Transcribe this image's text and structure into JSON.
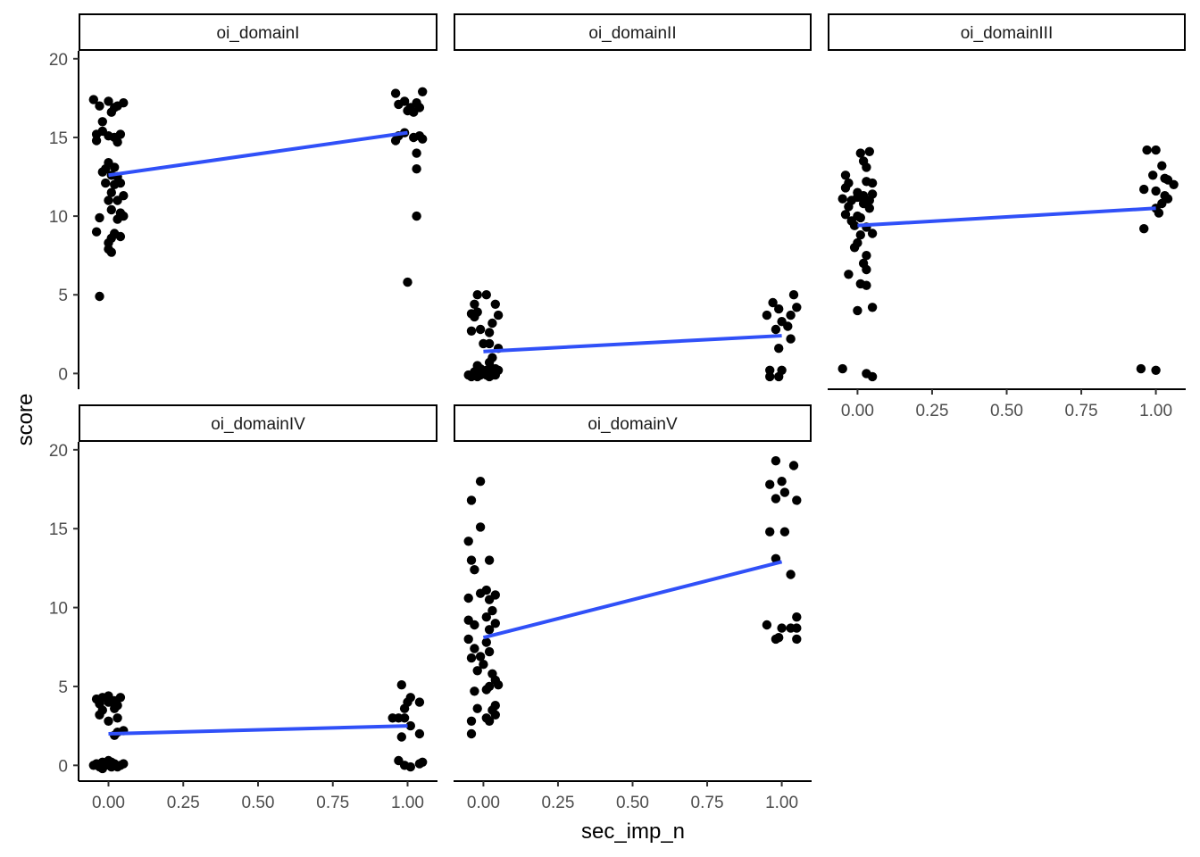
{
  "chart_data": {
    "type": "scatter",
    "xlabel": "sec_imp_n",
    "ylabel": "score",
    "xlim": [
      -0.1,
      1.1
    ],
    "ylim": [
      -1,
      20.5
    ],
    "x_ticks": [
      0,
      0.25,
      0.5,
      0.75,
      1
    ],
    "x_tick_labels": [
      "0.00",
      "0.25",
      "0.50",
      "0.75",
      "1.00"
    ],
    "y_ticks": [
      0,
      5,
      10,
      15,
      20
    ],
    "y_tick_labels": [
      "0",
      "5",
      "10",
      "15",
      "20"
    ],
    "grid": false,
    "point_color": "#000000",
    "line_color": "#3050f8",
    "strip_fill": "#ffffff",
    "panels": [
      {
        "name": "oi_domainI",
        "fit": {
          "x": [
            0,
            1
          ],
          "y": [
            12.6,
            15.3
          ]
        },
        "points": [
          [
            -0.05,
            17.4
          ],
          [
            -0.04,
            15.2
          ],
          [
            -0.03,
            17.0
          ],
          [
            -0.02,
            15.4
          ],
          [
            -0.04,
            14.8
          ],
          [
            0.0,
            17.3
          ],
          [
            0.02,
            16.9
          ],
          [
            0.03,
            17.0
          ],
          [
            0.01,
            16.6
          ],
          [
            -0.02,
            16.0
          ],
          [
            0.04,
            15.2
          ],
          [
            0.02,
            15.0
          ],
          [
            0.0,
            15.1
          ],
          [
            0.05,
            17.2
          ],
          [
            0.03,
            14.7
          ],
          [
            -0.01,
            13.0
          ],
          [
            0.0,
            13.4
          ],
          [
            0.02,
            13.1
          ],
          [
            -0.02,
            12.8
          ],
          [
            0.01,
            12.6
          ],
          [
            0.03,
            12.5
          ],
          [
            -0.01,
            12.1
          ],
          [
            0.02,
            12.0
          ],
          [
            0.04,
            12.1
          ],
          [
            0.01,
            11.5
          ],
          [
            0.05,
            11.3
          ],
          [
            0.03,
            11.0
          ],
          [
            0.0,
            11.0
          ],
          [
            0.01,
            10.4
          ],
          [
            0.04,
            10.2
          ],
          [
            0.05,
            10.0
          ],
          [
            -0.03,
            9.9
          ],
          [
            0.03,
            9.8
          ],
          [
            -0.04,
            9.0
          ],
          [
            0.02,
            8.9
          ],
          [
            0.04,
            8.7
          ],
          [
            0.01,
            8.6
          ],
          [
            0.0,
            8.3
          ],
          [
            0.0,
            7.9
          ],
          [
            0.01,
            7.7
          ],
          [
            -0.03,
            4.9
          ],
          [
            0.96,
            17.8
          ],
          [
            0.99,
            17.3
          ],
          [
            1.05,
            17.9
          ],
          [
            0.97,
            17.1
          ],
          [
            1.01,
            16.9
          ],
          [
            1.03,
            17.2
          ],
          [
            1.04,
            16.9
          ],
          [
            1.0,
            16.7
          ],
          [
            1.02,
            16.6
          ],
          [
            0.97,
            15.1
          ],
          [
            0.99,
            15.3
          ],
          [
            1.04,
            15.1
          ],
          [
            0.96,
            14.8
          ],
          [
            1.05,
            14.9
          ],
          [
            1.02,
            15.0
          ],
          [
            1.03,
            14.0
          ],
          [
            1.03,
            13.0
          ],
          [
            1.03,
            10.0
          ],
          [
            1.0,
            5.8
          ]
        ]
      },
      {
        "name": "oi_domainII",
        "fit": {
          "x": [
            0,
            1
          ],
          "y": [
            1.4,
            2.4
          ]
        },
        "points": [
          [
            -0.02,
            5.0
          ],
          [
            0.01,
            5.0
          ],
          [
            -0.03,
            4.4
          ],
          [
            0.04,
            4.4
          ],
          [
            -0.04,
            3.8
          ],
          [
            -0.02,
            3.9
          ],
          [
            -0.03,
            3.6
          ],
          [
            0.05,
            3.7
          ],
          [
            0.03,
            3.2
          ],
          [
            -0.04,
            2.7
          ],
          [
            -0.01,
            2.8
          ],
          [
            0.02,
            2.6
          ],
          [
            0.0,
            1.9
          ],
          [
            0.02,
            1.9
          ],
          [
            0.05,
            1.6
          ],
          [
            0.03,
            1.0
          ],
          [
            0.02,
            0.7
          ],
          [
            -0.02,
            0.5
          ],
          [
            0.04,
            0.3
          ],
          [
            0.05,
            0.2
          ],
          [
            -0.05,
            -0.1
          ],
          [
            -0.04,
            -0.2
          ],
          [
            -0.03,
            -0.1
          ],
          [
            -0.02,
            -0.2
          ],
          [
            -0.01,
            -0.1
          ],
          [
            0.0,
            0.0
          ],
          [
            0.01,
            -0.1
          ],
          [
            0.02,
            -0.2
          ],
          [
            0.03,
            -0.1
          ],
          [
            0.04,
            -0.1
          ],
          [
            -0.03,
            0.1
          ],
          [
            0.01,
            0.2
          ],
          [
            0.03,
            0.3
          ],
          [
            -0.01,
            0.3
          ],
          [
            1.04,
            5.0
          ],
          [
            0.97,
            4.5
          ],
          [
            1.05,
            4.2
          ],
          [
            0.99,
            4.1
          ],
          [
            0.95,
            3.7
          ],
          [
            1.03,
            3.7
          ],
          [
            1.0,
            3.3
          ],
          [
            1.02,
            3.0
          ],
          [
            0.98,
            2.8
          ],
          [
            1.03,
            2.2
          ],
          [
            0.99,
            1.6
          ],
          [
            0.96,
            0.2
          ],
          [
            1.0,
            0.2
          ],
          [
            0.96,
            -0.2
          ],
          [
            0.99,
            -0.2
          ]
        ]
      },
      {
        "name": "oi_domainIII",
        "fit": {
          "x": [
            0,
            1
          ],
          "y": [
            9.4,
            10.5
          ]
        },
        "points": [
          [
            0.01,
            14.0
          ],
          [
            0.04,
            14.1
          ],
          [
            0.02,
            13.5
          ],
          [
            0.03,
            13.1
          ],
          [
            -0.04,
            12.6
          ],
          [
            0.03,
            12.2
          ],
          [
            -0.03,
            12.1
          ],
          [
            0.05,
            12.1
          ],
          [
            -0.04,
            11.8
          ],
          [
            0.0,
            11.5
          ],
          [
            -0.05,
            11.1
          ],
          [
            -0.02,
            11.0
          ],
          [
            0.0,
            11.2
          ],
          [
            0.02,
            11.3
          ],
          [
            0.04,
            11.0
          ],
          [
            0.05,
            11.4
          ],
          [
            -0.03,
            10.6
          ],
          [
            0.02,
            10.8
          ],
          [
            0.04,
            10.5
          ],
          [
            -0.04,
            10.1
          ],
          [
            0.0,
            10.0
          ],
          [
            -0.02,
            9.7
          ],
          [
            0.01,
            9.9
          ],
          [
            -0.01,
            9.4
          ],
          [
            0.03,
            9.3
          ],
          [
            0.05,
            8.9
          ],
          [
            0.01,
            8.8
          ],
          [
            0.0,
            8.3
          ],
          [
            -0.01,
            8.0
          ],
          [
            0.03,
            7.5
          ],
          [
            0.02,
            7.0
          ],
          [
            -0.03,
            6.3
          ],
          [
            0.03,
            6.6
          ],
          [
            0.01,
            5.7
          ],
          [
            0.03,
            5.6
          ],
          [
            0.0,
            4.0
          ],
          [
            0.05,
            4.2
          ],
          [
            -0.05,
            0.3
          ],
          [
            0.03,
            0.0
          ],
          [
            0.05,
            -0.2
          ],
          [
            0.97,
            14.2
          ],
          [
            1.0,
            14.2
          ],
          [
            1.02,
            13.2
          ],
          [
            0.99,
            12.6
          ],
          [
            1.03,
            12.4
          ],
          [
            1.04,
            12.3
          ],
          [
            1.06,
            12.0
          ],
          [
            0.96,
            11.7
          ],
          [
            1.0,
            11.6
          ],
          [
            1.03,
            11.3
          ],
          [
            1.04,
            11.1
          ],
          [
            1.02,
            10.8
          ],
          [
            1.0,
            10.5
          ],
          [
            1.01,
            10.2
          ],
          [
            0.96,
            9.2
          ],
          [
            0.95,
            0.3
          ],
          [
            1.0,
            0.2
          ]
        ]
      },
      {
        "name": "oi_domainIV",
        "fit": {
          "x": [
            0,
            1
          ],
          "y": [
            2.0,
            2.5
          ]
        },
        "points": [
          [
            -0.04,
            4.2
          ],
          [
            -0.02,
            4.3
          ],
          [
            0.0,
            4.4
          ],
          [
            0.02,
            4.1
          ],
          [
            0.04,
            4.3
          ],
          [
            -0.03,
            3.9
          ],
          [
            0.0,
            4.0
          ],
          [
            0.03,
            3.8
          ],
          [
            -0.02,
            3.5
          ],
          [
            0.02,
            3.6
          ],
          [
            -0.03,
            3.2
          ],
          [
            0.03,
            3.0
          ],
          [
            0.0,
            2.8
          ],
          [
            0.05,
            2.2
          ],
          [
            0.03,
            2.1
          ],
          [
            0.02,
            1.9
          ],
          [
            -0.05,
            0.0
          ],
          [
            -0.04,
            0.1
          ],
          [
            -0.03,
            -0.1
          ],
          [
            -0.02,
            0.2
          ],
          [
            -0.01,
            0.0
          ],
          [
            0.0,
            0.3
          ],
          [
            0.01,
            -0.1
          ],
          [
            0.02,
            0.1
          ],
          [
            0.03,
            -0.1
          ],
          [
            0.04,
            0.0
          ],
          [
            0.05,
            0.1
          ],
          [
            -0.02,
            -0.2
          ],
          [
            0.01,
            0.2
          ],
          [
            0.98,
            5.1
          ],
          [
            1.01,
            4.3
          ],
          [
            1.0,
            4.0
          ],
          [
            1.04,
            4.0
          ],
          [
            0.99,
            3.6
          ],
          [
            0.95,
            3.0
          ],
          [
            0.97,
            3.0
          ],
          [
            0.99,
            3.0
          ],
          [
            1.01,
            2.5
          ],
          [
            0.98,
            1.8
          ],
          [
            1.04,
            2.0
          ],
          [
            0.97,
            0.3
          ],
          [
            1.05,
            0.2
          ],
          [
            0.99,
            0.0
          ],
          [
            1.01,
            -0.1
          ],
          [
            1.04,
            0.1
          ]
        ]
      },
      {
        "name": "oi_domainV",
        "fit": {
          "x": [
            0,
            1
          ],
          "y": [
            8.1,
            12.9
          ]
        },
        "points": [
          [
            -0.04,
            16.8
          ],
          [
            -0.01,
            18.0
          ],
          [
            -0.01,
            15.1
          ],
          [
            -0.05,
            14.2
          ],
          [
            -0.04,
            13.0
          ],
          [
            0.02,
            13.0
          ],
          [
            -0.03,
            12.4
          ],
          [
            0.01,
            11.1
          ],
          [
            -0.01,
            10.9
          ],
          [
            0.04,
            10.8
          ],
          [
            -0.05,
            10.6
          ],
          [
            0.02,
            10.5
          ],
          [
            0.03,
            9.8
          ],
          [
            0.01,
            9.4
          ],
          [
            -0.05,
            9.2
          ],
          [
            0.04,
            9.0
          ],
          [
            -0.03,
            8.9
          ],
          [
            0.02,
            8.6
          ],
          [
            -0.05,
            8.0
          ],
          [
            0.01,
            7.8
          ],
          [
            -0.03,
            7.4
          ],
          [
            0.02,
            7.2
          ],
          [
            -0.04,
            6.8
          ],
          [
            -0.01,
            6.9
          ],
          [
            0.0,
            6.4
          ],
          [
            -0.02,
            6.0
          ],
          [
            0.03,
            5.8
          ],
          [
            0.04,
            5.4
          ],
          [
            0.02,
            5.0
          ],
          [
            0.05,
            5.1
          ],
          [
            0.01,
            4.8
          ],
          [
            -0.03,
            4.7
          ],
          [
            0.04,
            3.8
          ],
          [
            -0.02,
            3.6
          ],
          [
            0.03,
            3.5
          ],
          [
            0.04,
            3.2
          ],
          [
            0.01,
            3.0
          ],
          [
            0.02,
            2.8
          ],
          [
            -0.04,
            2.8
          ],
          [
            -0.04,
            2.0
          ],
          [
            0.98,
            19.3
          ],
          [
            1.04,
            19.0
          ],
          [
            0.96,
            17.8
          ],
          [
            1.0,
            18.0
          ],
          [
            1.01,
            17.3
          ],
          [
            0.98,
            16.9
          ],
          [
            1.05,
            16.8
          ],
          [
            0.96,
            14.8
          ],
          [
            1.01,
            14.8
          ],
          [
            0.98,
            13.1
          ],
          [
            1.03,
            12.1
          ],
          [
            1.05,
            9.4
          ],
          [
            0.95,
            8.9
          ],
          [
            1.0,
            8.7
          ],
          [
            1.03,
            8.7
          ],
          [
            1.05,
            8.7
          ],
          [
            0.98,
            8.0
          ],
          [
            0.99,
            8.1
          ],
          [
            1.05,
            8.0
          ]
        ]
      }
    ]
  }
}
